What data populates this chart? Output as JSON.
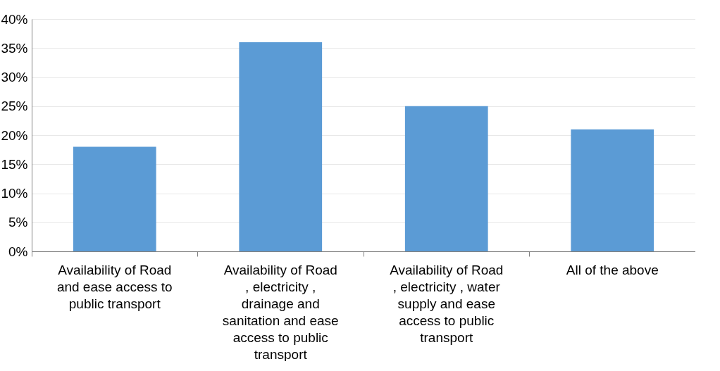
{
  "chart_data": {
    "type": "bar",
    "categories": [
      "Availability of Road and ease access to public transport",
      "Availability of Road , electricity , drainage and sanitation and ease access to public transport",
      "Availability of Road , electricity , water supply and ease access to public transport",
      "All of the above"
    ],
    "values": [
      18,
      36,
      25,
      21
    ],
    "color": "#5b9bd5",
    "ylim": [
      0,
      40
    ],
    "yticks": [
      {
        "value": 0,
        "label": "0%"
      },
      {
        "value": 5,
        "label": "5%"
      },
      {
        "value": 10,
        "label": "10%"
      },
      {
        "value": 15,
        "label": "15%"
      },
      {
        "value": 20,
        "label": "20%"
      },
      {
        "value": 25,
        "label": "25%"
      },
      {
        "value": 30,
        "label": "30%"
      },
      {
        "value": 35,
        "label": "35%"
      },
      {
        "value": 40,
        "label": "40%"
      }
    ],
    "grid": "y"
  }
}
